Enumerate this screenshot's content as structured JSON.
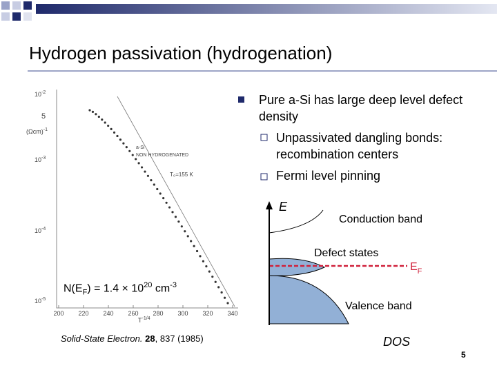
{
  "header": {
    "title": "Hydrogen passivation (hydrogenation)"
  },
  "bullets": [
    {
      "text": "Pure a-Si has large deep level defect density",
      "sub": [
        "Unpassivated dangling bonds: recombination centers",
        "Fermi level pinning"
      ]
    }
  ],
  "figure": {
    "yticks": [
      {
        "base": "10",
        "exp": "-2"
      },
      {
        "base": "10",
        "exp": "-3"
      },
      {
        "base": "10",
        "exp": "-4"
      },
      {
        "base": "10",
        "exp": "-5"
      }
    ],
    "minor_label": "5",
    "ylabel": {
      "base": "(Ωcm)",
      "exp": "-1"
    },
    "xticks": [
      "200",
      "220",
      "240",
      "260",
      "280",
      "300",
      "320",
      "340"
    ],
    "xlabel": {
      "base": "T",
      "exp": "-1/4"
    },
    "legend": [
      "a-Si",
      "NON HYDROGENATED"
    ],
    "fit_label": "T₀=155 K"
  },
  "annotation": {
    "lead": "N(E",
    "sub": "F",
    "eq": ") = 1.4 × 10",
    "exp": "20",
    "unit": " cm",
    "unit_exp": "-3"
  },
  "citation": {
    "journal": "Solid-State Electron.",
    "volume": "28",
    "rest": ", 837 (1985)"
  },
  "diagram": {
    "energy": "E",
    "dos": "DOS",
    "conduction": "Conduction band",
    "defect": "Defect states",
    "valence": "Valence band",
    "fermi": {
      "main": "E",
      "sub": "F"
    }
  },
  "page_number": "5"
}
